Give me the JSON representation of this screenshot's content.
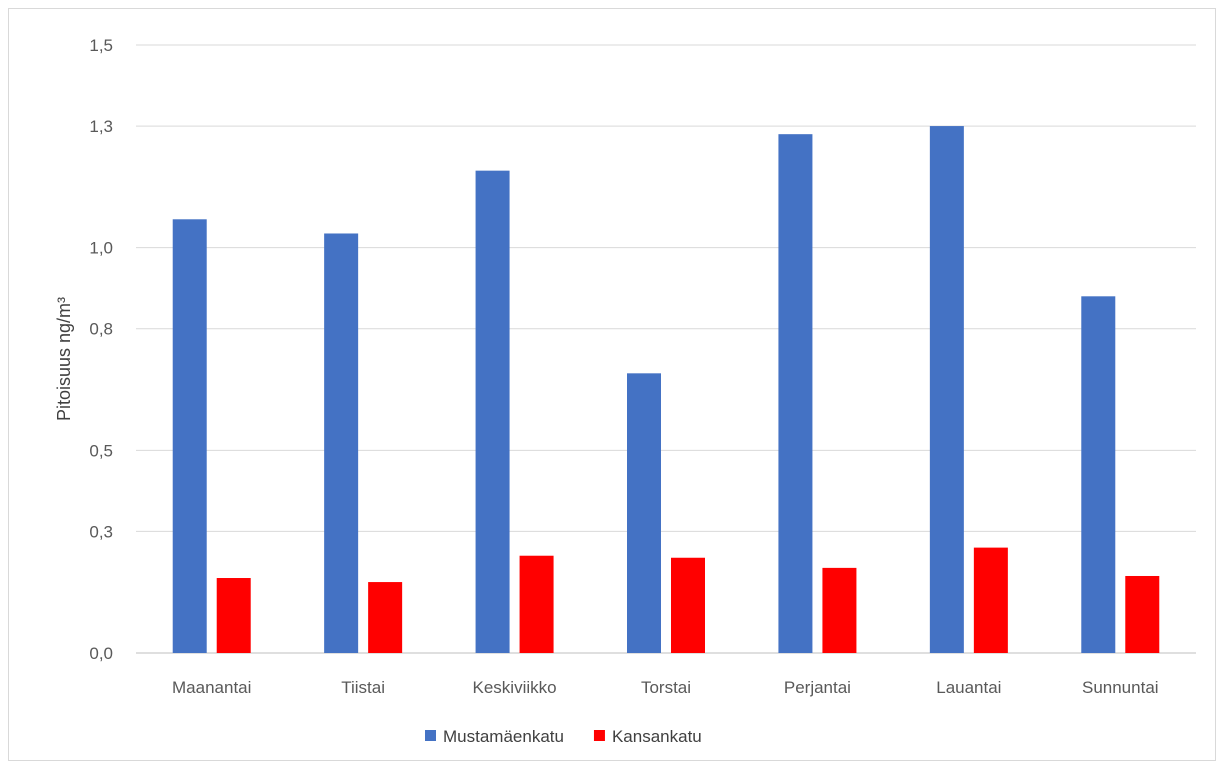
{
  "chart_data": {
    "type": "bar",
    "title": "",
    "xlabel": "",
    "ylabel": "Pitoisuus ng/m³",
    "ylim": [
      0,
      1.5
    ],
    "yticks": [
      0,
      0.3,
      0.5,
      0.8,
      1.0,
      1.3,
      1.5
    ],
    "ytick_labels": [
      "0,0",
      "0,3",
      "0,5",
      "0,8",
      "1,0",
      "1,3",
      "1,5"
    ],
    "grid": true,
    "legend_position": "bottom",
    "categories": [
      "Maanantai",
      "Tiistai",
      "Keskiviikko",
      "Torstai",
      "Perjantai",
      "Lauantai",
      "Sunnuntai"
    ],
    "series": [
      {
        "name": "Mustamäenkatu",
        "color": "#4472C4",
        "values": [
          1.07,
          1.035,
          1.19,
          0.69,
          1.28,
          1.3,
          0.88
        ]
      },
      {
        "name": "Kansankatu",
        "color": "#FF0000",
        "values": [
          0.185,
          0.175,
          0.24,
          0.235,
          0.21,
          0.26,
          0.19
        ]
      }
    ]
  }
}
